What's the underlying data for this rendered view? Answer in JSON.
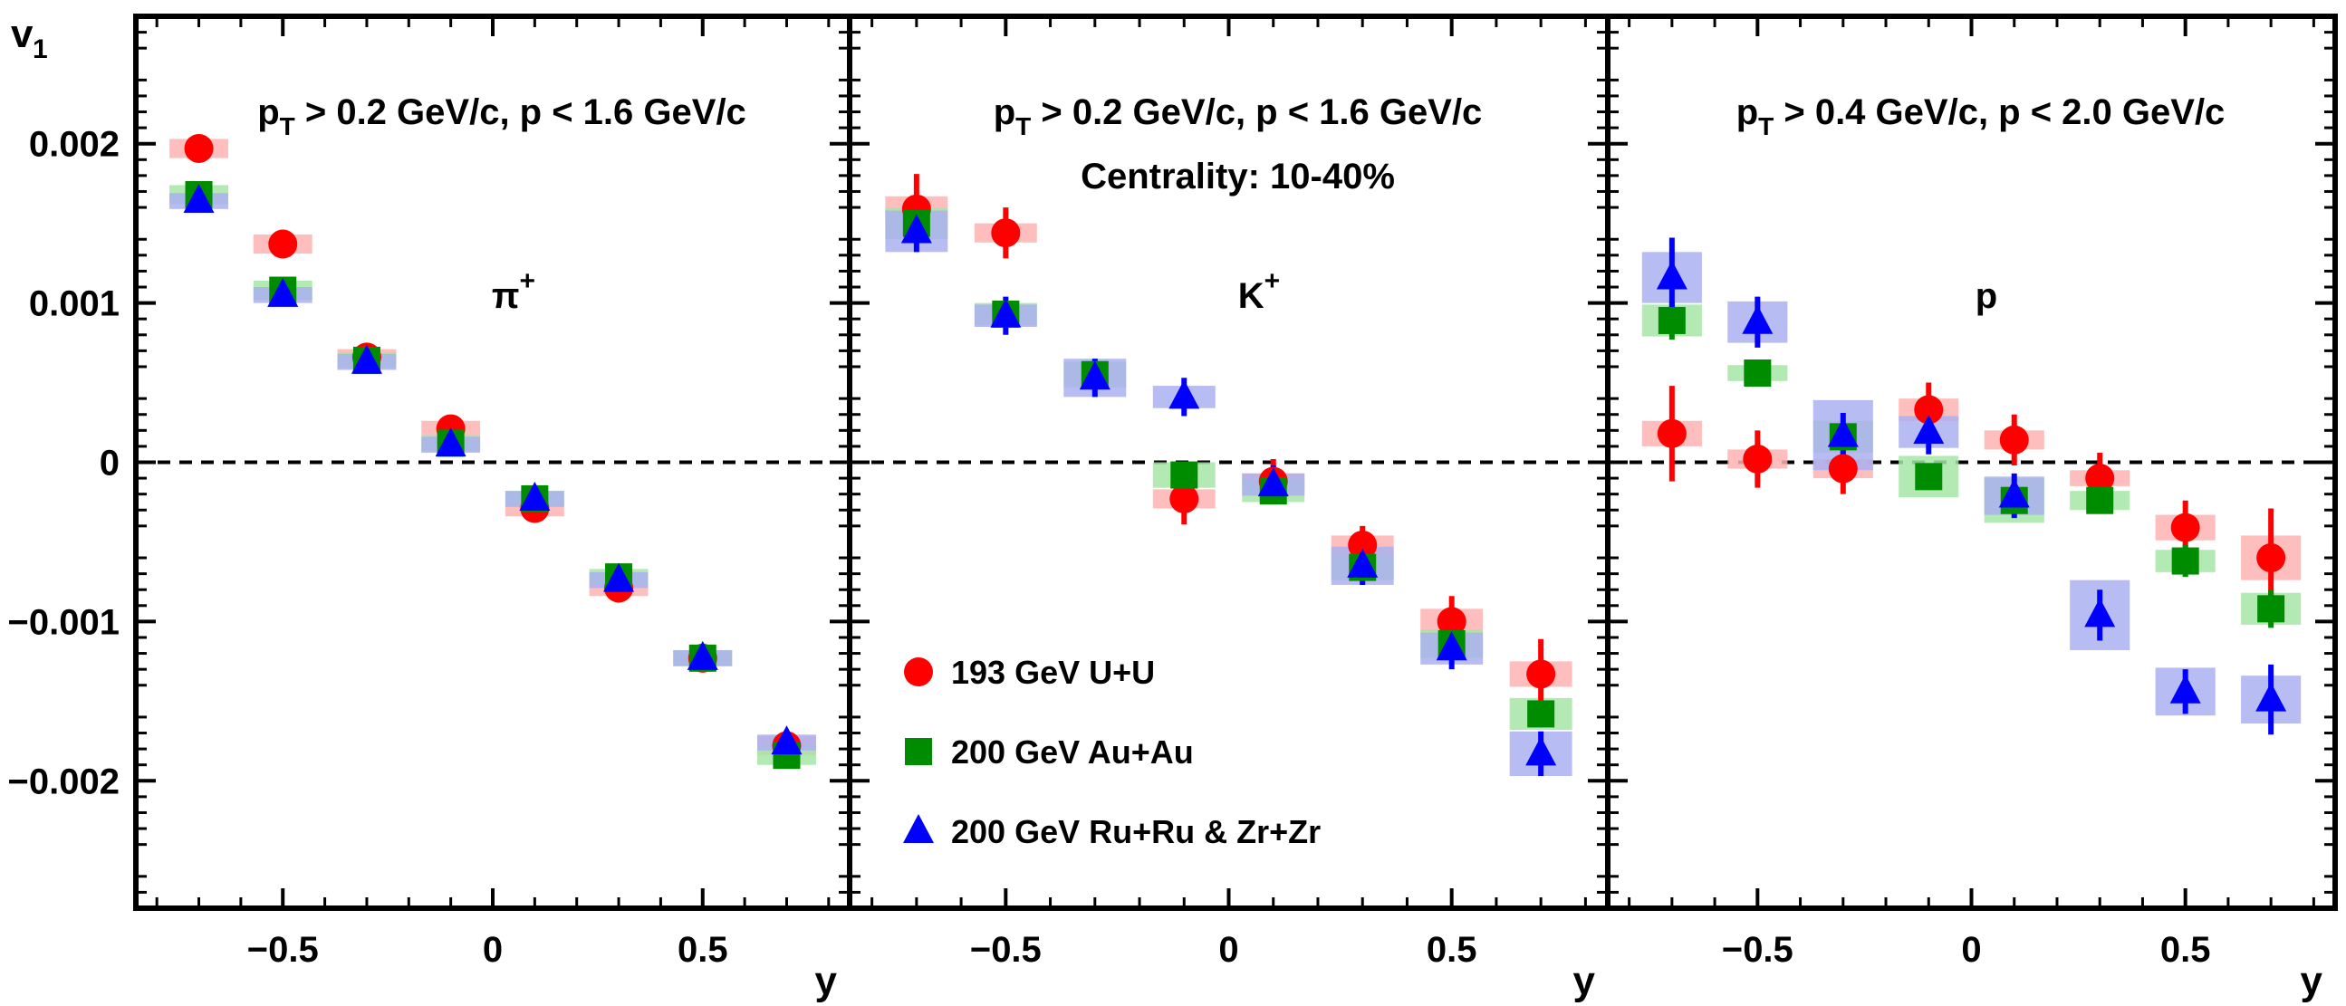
{
  "chart_data": {
    "type": "scatter",
    "ylabel": "v",
    "ylabel_sub": "1",
    "xlabel": "y",
    "xlim": [
      -0.85,
      0.85
    ],
    "ylim": [
      -0.0028,
      0.0028
    ],
    "x_ticks": [
      -0.5,
      0,
      0.5
    ],
    "x_tick_labels": [
      "−0.5",
      "0",
      "0.5"
    ],
    "y_ticks": [
      0.002,
      0.001,
      0,
      -0.001,
      -0.002
    ],
    "y_tick_labels": [
      "0.002",
      "0.001",
      "0",
      "−0.001",
      "−0.002"
    ],
    "zero_line": "dashed",
    "colors": {
      "uu": "#ff0000",
      "auau": "#008c00",
      "iso": "#0000ff",
      "uu_box": "#ffb3b3",
      "auau_box": "#a6e6a6",
      "iso_box": "#aab0f0"
    },
    "legend": {
      "placement": "lower-left of middle panel",
      "entries": [
        {
          "label": "193 GeV U+U",
          "marker": "circle",
          "series": "uu"
        },
        {
          "label": "200 GeV Au+Au",
          "marker": "square",
          "series": "auau"
        },
        {
          "label": "200 GeV Ru+Ru & Zr+Zr",
          "marker": "triangle",
          "series": "iso"
        }
      ]
    },
    "panels": [
      {
        "cut_label": "p > 0.2 GeV/c, p < 1.6 GeV/c",
        "cut_main": "p",
        "cut_sub": "T",
        "cut_rest": " > 0.2 GeV/c, p < 1.6 GeV/c",
        "particle": "π",
        "particle_sup": "+",
        "extra_label": "",
        "series": [
          {
            "key": "uu",
            "marker": "circle",
            "x": [
              -0.7,
              -0.5,
              -0.3,
              -0.1,
              0.1,
              0.3,
              0.5,
              0.7
            ],
            "y": [
              0.00197,
              0.00137,
              0.00066,
              0.00021,
              -0.00029,
              -0.00079,
              -0.00123,
              -0.00178
            ],
            "err": [
              3e-05,
              3e-05,
              3e-05,
              3e-05,
              3e-05,
              3e-05,
              3e-05,
              3e-05
            ],
            "sys": [
              6e-05,
              6e-05,
              5e-05,
              5e-05,
              5e-05,
              5e-05,
              5e-05,
              6e-05
            ]
          },
          {
            "key": "auau",
            "marker": "square",
            "x": [
              -0.7,
              -0.5,
              -0.3,
              -0.1,
              0.1,
              0.3,
              0.5,
              0.7
            ],
            "y": [
              0.00168,
              0.00108,
              0.00064,
              0.00012,
              -0.00023,
              -0.00072,
              -0.00123,
              -0.00184
            ],
            "err": [
              3e-05,
              3e-05,
              3e-05,
              3e-05,
              3e-05,
              3e-05,
              3e-05,
              3e-05
            ],
            "sys": [
              6e-05,
              6e-05,
              5e-05,
              5e-05,
              5e-05,
              5e-05,
              5e-05,
              6e-05
            ]
          },
          {
            "key": "iso",
            "marker": "triangle",
            "x": [
              -0.7,
              -0.5,
              -0.3,
              -0.1,
              0.1,
              0.3,
              0.5,
              0.7
            ],
            "y": [
              0.00164,
              0.00105,
              0.00063,
              0.00011,
              -0.00023,
              -0.00074,
              -0.00123,
              -0.00176
            ],
            "err": [
              3e-05,
              3e-05,
              3e-05,
              3e-05,
              3e-05,
              3e-05,
              3e-05,
              3e-05
            ],
            "sys": [
              5e-05,
              5e-05,
              5e-05,
              5e-05,
              5e-05,
              5e-05,
              5e-05,
              5e-05
            ]
          }
        ]
      },
      {
        "cut_label": "p > 0.2 GeV/c, p < 1.6 GeV/c",
        "cut_main": "p",
        "cut_sub": "T",
        "cut_rest": " > 0.2 GeV/c, p < 1.6 GeV/c",
        "particle": "K",
        "particle_sup": "+",
        "extra_label": "Centrality: 10-40%",
        "series": [
          {
            "key": "uu",
            "marker": "circle",
            "x": [
              -0.7,
              -0.5,
              -0.1,
              0.1,
              0.3,
              0.5,
              0.7
            ],
            "y": [
              0.00159,
              0.00144,
              -0.00023,
              -0.00012,
              -0.00052,
              -0.001,
              -0.00133
            ],
            "err": [
              0.00022,
              0.00016,
              0.00016,
              0.00014,
              0.00012,
              0.00016,
              0.00022
            ],
            "sys": [
              8e-05,
              6e-05,
              6e-05,
              5e-05,
              6e-05,
              8e-05,
              8e-05
            ]
          },
          {
            "key": "auau",
            "marker": "square",
            "x": [
              -0.7,
              -0.5,
              -0.3,
              -0.1,
              0.1,
              0.3,
              0.5,
              0.7
            ],
            "y": [
              0.0015,
              0.00093,
              0.00055,
              -8e-05,
              -0.00018,
              -0.00066,
              -0.00114,
              -0.00158
            ],
            "err": [
              7e-05,
              6e-05,
              6e-05,
              6e-05,
              6e-05,
              6e-05,
              7e-05,
              8e-05
            ],
            "sys": [
              0.0001,
              7e-05,
              8e-05,
              8e-05,
              7e-05,
              8e-05,
              9e-05,
              0.0001
            ]
          },
          {
            "key": "iso",
            "marker": "triangle",
            "x": [
              -0.7,
              -0.5,
              -0.3,
              -0.1,
              0.1,
              0.3,
              0.5,
              0.7
            ],
            "y": [
              0.00145,
              0.00092,
              0.00053,
              0.00041,
              -0.00014,
              -0.00065,
              -0.00117,
              -0.00183
            ],
            "err": [
              0.00013,
              0.00012,
              0.00012,
              0.00012,
              0.00012,
              0.00012,
              0.00013,
              0.00014
            ],
            "sys": [
              0.00013,
              7e-05,
              0.00012,
              7e-05,
              7e-05,
              0.00012,
              0.0001,
              0.00014
            ]
          }
        ]
      },
      {
        "cut_label": "p > 0.4 GeV/c, p < 2.0 GeV/c",
        "cut_main": "p",
        "cut_sub": "T",
        "cut_rest": " > 0.4 GeV/c, p < 2.0 GeV/c",
        "particle": "p",
        "particle_sup": "",
        "extra_label": "",
        "series": [
          {
            "key": "uu",
            "marker": "circle",
            "x": [
              -0.7,
              -0.5,
              -0.3,
              -0.1,
              0.1,
              0.3,
              0.5,
              0.7
            ],
            "y": [
              0.00018,
              2e-05,
              -4e-05,
              0.00033,
              0.00014,
              -0.0001,
              -0.00041,
              -0.0006
            ],
            "err": [
              0.0003,
              0.00018,
              0.00016,
              0.00017,
              0.00016,
              0.00016,
              0.00017,
              0.00031
            ],
            "sys": [
              8e-05,
              6e-05,
              6e-05,
              7e-05,
              6e-05,
              5e-05,
              8e-05,
              0.00014
            ]
          },
          {
            "key": "auau",
            "marker": "square",
            "x": [
              -0.7,
              -0.5,
              -0.3,
              -0.1,
              0.1,
              0.3,
              0.5,
              0.7
            ],
            "y": [
              0.00089,
              0.00056,
              0.00016,
              -9e-05,
              -0.00024,
              -0.00024,
              -0.00062,
              -0.00092
            ],
            "err": [
              0.00012,
              6e-05,
              7e-05,
              8e-05,
              8e-05,
              8e-05,
              0.0001,
              0.00012
            ],
            "sys": [
              0.0001,
              5e-05,
              0.0001,
              0.00013,
              0.00014,
              6e-05,
              7e-05,
              0.0001
            ]
          },
          {
            "key": "iso",
            "marker": "triangle",
            "x": [
              -0.7,
              -0.5,
              -0.3,
              -0.1,
              0.1,
              0.3,
              0.5,
              0.7
            ],
            "y": [
              0.00116,
              0.00088,
              0.00017,
              0.00019,
              -0.00021,
              -0.00096,
              -0.00144,
              -0.00149
            ],
            "err": [
              0.00025,
              0.00016,
              0.00014,
              0.00014,
              0.00014,
              0.00016,
              0.00014,
              0.00022
            ],
            "sys": [
              0.00016,
              0.00013,
              0.00022,
              0.0001,
              0.00012,
              0.00022,
              0.00015,
              0.00015
            ]
          }
        ]
      }
    ]
  }
}
